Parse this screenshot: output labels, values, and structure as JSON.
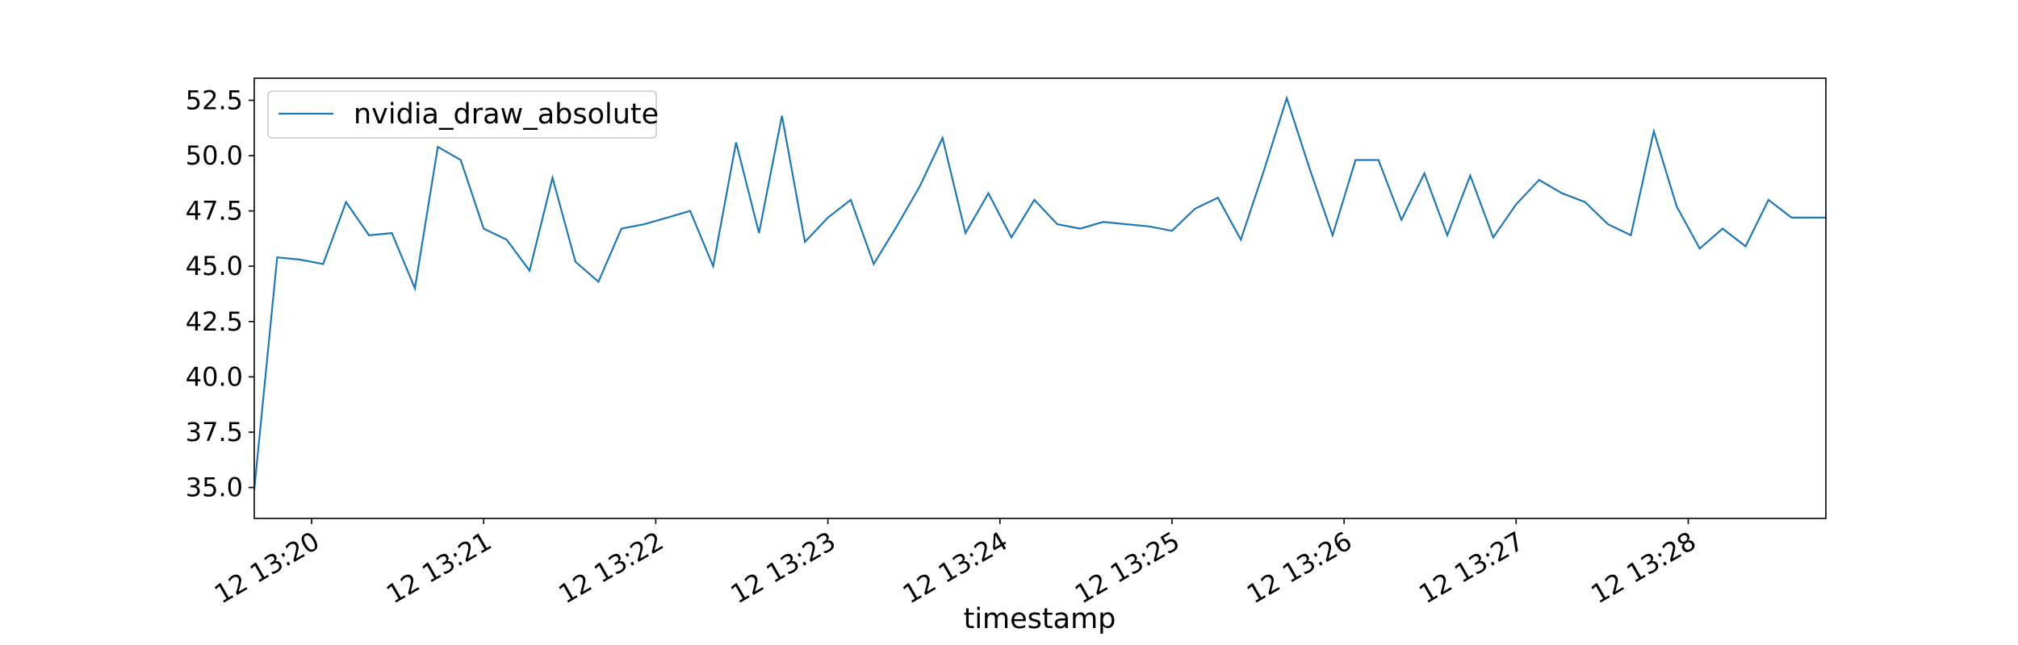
{
  "chart_data": {
    "type": "line",
    "title": "",
    "xlabel": "timestamp",
    "ylabel": "",
    "line_color": "#1f77b4",
    "grid": false,
    "legend_position": "upper-left",
    "xticks": [
      {
        "time": "13:20:00",
        "label": "12 13:20"
      },
      {
        "time": "13:21:00",
        "label": "12 13:21"
      },
      {
        "time": "13:22:00",
        "label": "12 13:22"
      },
      {
        "time": "13:23:00",
        "label": "12 13:23"
      },
      {
        "time": "13:24:00",
        "label": "12 13:24"
      },
      {
        "time": "13:25:00",
        "label": "12 13:25"
      },
      {
        "time": "13:26:00",
        "label": "12 13:26"
      },
      {
        "time": "13:27:00",
        "label": "12 13:27"
      },
      {
        "time": "13:28:00",
        "label": "12 13:28"
      }
    ],
    "yticks": [
      "35.0",
      "37.5",
      "40.0",
      "42.5",
      "45.0",
      "47.5",
      "50.0",
      "52.5"
    ],
    "xlim": [
      "13:19:40",
      "13:28:48"
    ],
    "ylim": [
      33.6,
      53.5
    ],
    "series": [
      {
        "name": "nvidia_draw_absolute",
        "x": [
          "13:19:40",
          "13:19:48",
          "13:19:56",
          "13:20:04",
          "13:20:12",
          "13:20:20",
          "13:20:28",
          "13:20:36",
          "13:20:44",
          "13:20:52",
          "13:21:00",
          "13:21:08",
          "13:21:16",
          "13:21:24",
          "13:21:32",
          "13:21:40",
          "13:21:48",
          "13:21:56",
          "13:22:04",
          "13:22:12",
          "13:22:20",
          "13:22:28",
          "13:22:36",
          "13:22:44",
          "13:22:52",
          "13:23:00",
          "13:23:08",
          "13:23:16",
          "13:23:24",
          "13:23:32",
          "13:23:40",
          "13:23:48",
          "13:23:56",
          "13:24:04",
          "13:24:12",
          "13:24:20",
          "13:24:28",
          "13:24:36",
          "13:24:44",
          "13:24:52",
          "13:25:00",
          "13:25:08",
          "13:25:16",
          "13:25:24",
          "13:25:32",
          "13:25:40",
          "13:25:48",
          "13:25:56",
          "13:26:04",
          "13:26:12",
          "13:26:20",
          "13:26:28",
          "13:26:36",
          "13:26:44",
          "13:26:52",
          "13:27:00",
          "13:27:08",
          "13:27:16",
          "13:27:24",
          "13:27:32",
          "13:27:40",
          "13:27:48",
          "13:27:56",
          "13:28:04",
          "13:28:12",
          "13:28:20",
          "13:28:28",
          "13:28:36",
          "13:28:44",
          "13:28:48"
        ],
        "values": [
          34.9,
          45.4,
          45.3,
          45.1,
          47.9,
          46.4,
          46.5,
          44.0,
          50.4,
          49.8,
          46.7,
          46.2,
          44.8,
          49.0,
          45.2,
          44.3,
          46.7,
          46.9,
          47.2,
          47.5,
          45.0,
          50.6,
          46.5,
          51.8,
          46.1,
          47.2,
          48.0,
          45.1,
          46.8,
          48.6,
          50.8,
          46.5,
          48.3,
          46.3,
          48.0,
          46.9,
          46.7,
          47.0,
          46.9,
          46.8,
          46.6,
          47.6,
          48.1,
          46.2,
          49.3,
          52.6,
          49.4,
          46.4,
          49.8,
          49.8,
          47.1,
          49.2,
          46.4,
          49.1,
          46.3,
          47.8,
          48.9,
          48.3,
          47.9,
          46.9,
          46.4,
          51.1,
          47.7,
          45.8,
          46.7,
          45.9,
          48.0,
          47.2,
          47.2,
          47.2
        ]
      }
    ]
  }
}
